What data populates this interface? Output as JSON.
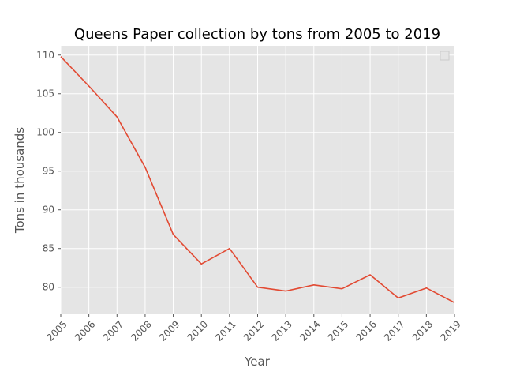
{
  "chart_data": {
    "type": "line",
    "title": "Queens Paper collection by tons from 2005 to 2019",
    "xlabel": "Year",
    "ylabel": "Tons in thousands",
    "x": [
      "2005",
      "2006",
      "2007",
      "2008",
      "2009",
      "2010",
      "2011",
      "2012",
      "2013",
      "2014",
      "2015",
      "2016",
      "2017",
      "2018",
      "2019"
    ],
    "series": [
      {
        "values": [
          109.8,
          106.0,
          102.0,
          95.5,
          86.8,
          83.0,
          85.0,
          80.0,
          79.5,
          80.3,
          79.8,
          81.6,
          78.6,
          79.9,
          78.0
        ],
        "color": "#e24a33"
      }
    ],
    "ylim": [
      76.5,
      111.2
    ],
    "yticks": [
      80,
      85,
      90,
      95,
      100,
      105,
      110
    ],
    "grid": true,
    "background": "#e5e5e5",
    "legend": "top-right",
    "legend_entries": []
  }
}
